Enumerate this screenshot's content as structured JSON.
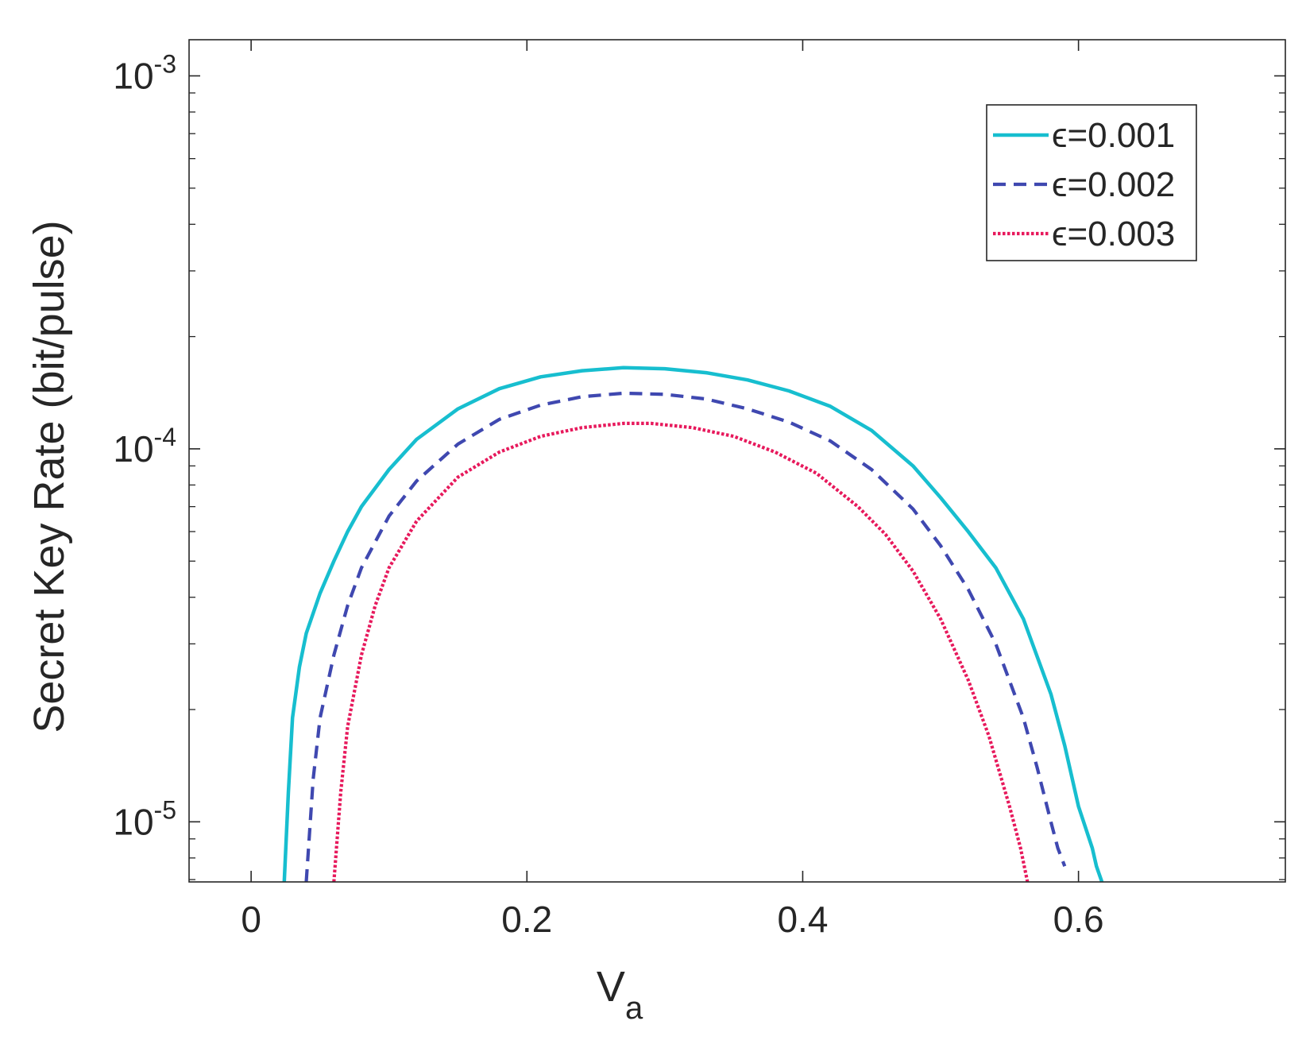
{
  "chart_data": {
    "type": "line",
    "xlabel": "V",
    "xlabel_sub": "a",
    "ylabel": "Secret Key Rate (bit/pulse)",
    "xlim": [
      -0.045,
      0.75
    ],
    "ylim": [
      6.9e-06,
      0.00125
    ],
    "yscale": "log",
    "x_ticks": [
      0,
      0.2,
      0.4,
      0.6
    ],
    "x_tick_labels": [
      "0",
      "0.2",
      "0.4",
      "0.6"
    ],
    "y_ticks": [
      1e-05,
      0.0001,
      0.001
    ],
    "y_tick_labels": [
      {
        "base": "10",
        "exp": "-5"
      },
      {
        "base": "10",
        "exp": "-4"
      },
      {
        "base": "10",
        "exp": "-3"
      }
    ],
    "grid": false,
    "legend_position": "top-right",
    "series": [
      {
        "name": "ϵ=0.001",
        "color": "#17BECF",
        "style": "solid",
        "x": [
          0.024,
          0.027,
          0.03,
          0.035,
          0.04,
          0.05,
          0.06,
          0.07,
          0.08,
          0.1,
          0.12,
          0.15,
          0.18,
          0.21,
          0.24,
          0.27,
          0.3,
          0.33,
          0.36,
          0.39,
          0.42,
          0.45,
          0.48,
          0.5,
          0.52,
          0.54,
          0.56,
          0.58,
          0.59,
          0.6,
          0.61,
          0.613,
          0.617
        ],
        "y": [
          6.9e-06,
          1.2e-05,
          1.9e-05,
          2.6e-05,
          3.2e-05,
          4.1e-05,
          5e-05,
          6e-05,
          7e-05,
          8.8e-05,
          0.000106,
          0.000128,
          0.000145,
          0.000156,
          0.000162,
          0.000165,
          0.000164,
          0.00016,
          0.000153,
          0.000143,
          0.00013,
          0.000112,
          9e-05,
          7.4e-05,
          6e-05,
          4.8e-05,
          3.5e-05,
          2.2e-05,
          1.6e-05,
          1.1e-05,
          8.5e-06,
          7.6e-06,
          6.9e-06
        ]
      },
      {
        "name": "ϵ=0.002",
        "color": "#3F48B0",
        "style": "dashed",
        "x": [
          0.04,
          0.045,
          0.05,
          0.06,
          0.07,
          0.08,
          0.1,
          0.12,
          0.15,
          0.18,
          0.21,
          0.24,
          0.27,
          0.3,
          0.33,
          0.36,
          0.39,
          0.42,
          0.45,
          0.48,
          0.5,
          0.52,
          0.54,
          0.56,
          0.57,
          0.58,
          0.585,
          0.59
        ],
        "y": [
          6.9e-06,
          1.3e-05,
          1.9e-05,
          2.8e-05,
          3.8e-05,
          4.8e-05,
          6.6e-05,
          8.2e-05,
          0.000103,
          0.00012,
          0.000131,
          0.000138,
          0.000141,
          0.00014,
          0.000136,
          0.000128,
          0.000118,
          0.000105,
          8.8e-05,
          6.9e-05,
          5.5e-05,
          4.2e-05,
          3e-05,
          1.9e-05,
          1.4e-05,
          1e-05,
          8.5e-06,
          7.6e-06
        ]
      },
      {
        "name": "ϵ=0.003",
        "color": "#E7195C",
        "style": "dotted",
        "x": [
          0.06,
          0.065,
          0.07,
          0.08,
          0.09,
          0.1,
          0.12,
          0.15,
          0.18,
          0.21,
          0.24,
          0.27,
          0.29,
          0.32,
          0.35,
          0.38,
          0.41,
          0.44,
          0.46,
          0.48,
          0.5,
          0.52,
          0.535,
          0.55,
          0.558,
          0.563
        ],
        "y": [
          6.9e-06,
          1.2e-05,
          1.8e-05,
          2.8e-05,
          3.8e-05,
          4.8e-05,
          6.4e-05,
          8.4e-05,
          9.8e-05,
          0.000108,
          0.000114,
          0.000117,
          0.000117,
          0.000114,
          0.000108,
          9.8e-05,
          8.6e-05,
          7e-05,
          5.9e-05,
          4.7e-05,
          3.5e-05,
          2.4e-05,
          1.7e-05,
          1.1e-05,
          8.5e-06,
          6.9e-06
        ]
      }
    ]
  }
}
